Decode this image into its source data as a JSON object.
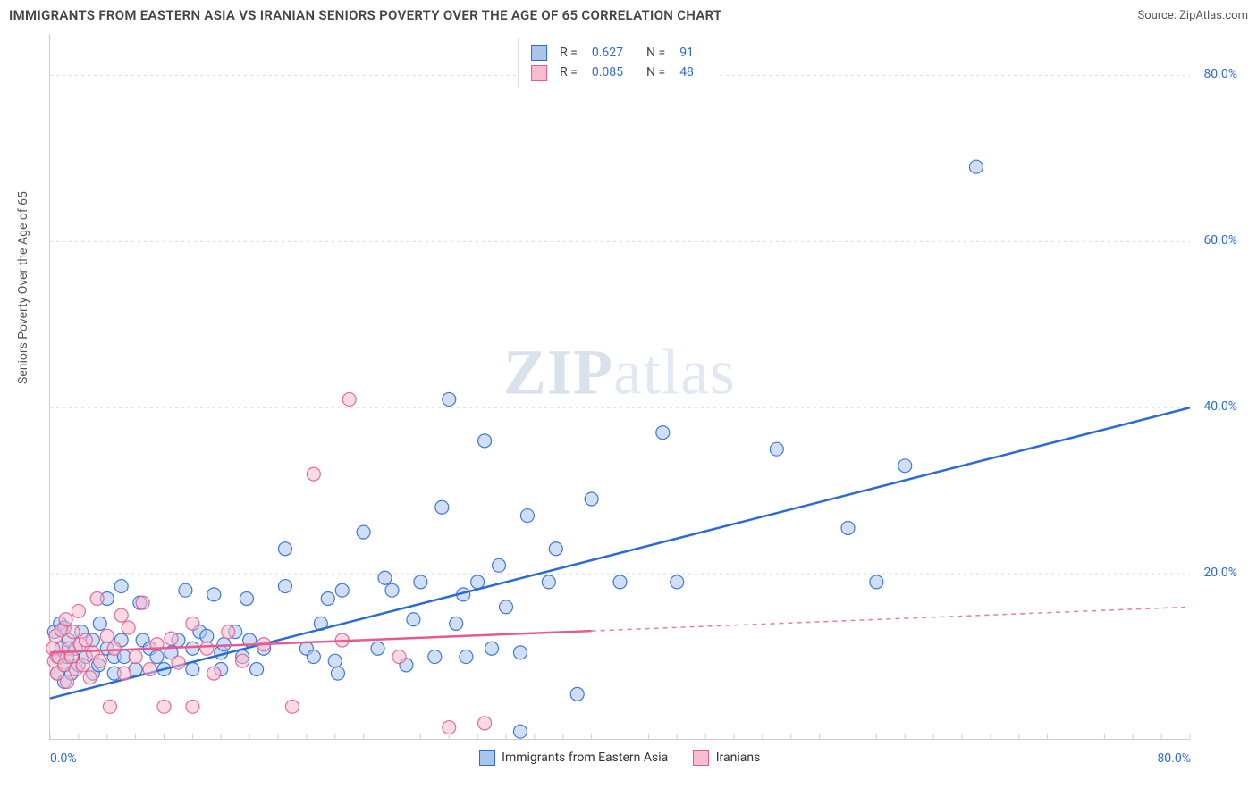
{
  "title": "IMMIGRANTS FROM EASTERN ASIA VS IRANIAN SENIORS POVERTY OVER THE AGE OF 65 CORRELATION CHART",
  "source": "Source: ZipAtlas.com",
  "y_axis_label": "Seniors Poverty Over the Age of 65",
  "watermark_a": "ZIP",
  "watermark_b": "atlas",
  "chart": {
    "type": "scatter",
    "xlim": [
      0,
      80
    ],
    "ylim": [
      0,
      85
    ],
    "x_ticks": [
      {
        "v": 0,
        "label": "0.0%"
      },
      {
        "v": 80,
        "label": "80.0%"
      }
    ],
    "y_ticks": [
      {
        "v": 20,
        "label": "20.0%"
      },
      {
        "v": 40,
        "label": "40.0%"
      },
      {
        "v": 60,
        "label": "60.0%"
      },
      {
        "v": 80,
        "label": "80.0%"
      }
    ],
    "x_minor_grid_step": 2,
    "background_color": "#ffffff",
    "grid_color": "#d9d9d9",
    "minor_tick_color": "#cccccc",
    "marker_radius": 7.5,
    "marker_opacity": 0.55,
    "trend_line_width": 2.5,
    "trend_dash": "5,5"
  },
  "legend_top": {
    "rows": [
      {
        "swatch_fill": "#a9c5ec",
        "swatch_stroke": "#2b6cd4",
        "r": "0.627",
        "n": "91"
      },
      {
        "swatch_fill": "#f7bccd",
        "swatch_stroke": "#e75a8d",
        "r": "0.085",
        "n": "48"
      }
    ],
    "r_label": "R  =",
    "n_label": "N  ="
  },
  "legend_bottom": [
    {
      "swatch_fill": "#a9c5ec",
      "swatch_stroke": "#2b6cd4",
      "label": "Immigrants from Eastern Asia"
    },
    {
      "swatch_fill": "#f7bccd",
      "swatch_stroke": "#e75a8d",
      "label": "Iranians"
    }
  ],
  "series": [
    {
      "name": "eastern_asia",
      "color_fill": "#a9c5ec",
      "color_stroke": "#2b6cd4",
      "trend": {
        "x1": 0,
        "y1": 5,
        "x2": 80,
        "y2": 40,
        "solid_until_x": 80
      },
      "points": [
        [
          0.3,
          13
        ],
        [
          0.5,
          10
        ],
        [
          0.5,
          8
        ],
        [
          0.7,
          14
        ],
        [
          0.8,
          11
        ],
        [
          1,
          7
        ],
        [
          1,
          9
        ],
        [
          1,
          13.5
        ],
        [
          1.2,
          10
        ],
        [
          1.3,
          12
        ],
        [
          1.5,
          8
        ],
        [
          1.8,
          11
        ],
        [
          2,
          9
        ],
        [
          2.2,
          13
        ],
        [
          2.5,
          10
        ],
        [
          3,
          8
        ],
        [
          3,
          12
        ],
        [
          3.4,
          9
        ],
        [
          3.5,
          14
        ],
        [
          4,
          11
        ],
        [
          4,
          17
        ],
        [
          4.5,
          8
        ],
        [
          4.5,
          10
        ],
        [
          5,
          12
        ],
        [
          5,
          18.5
        ],
        [
          5.2,
          10
        ],
        [
          6,
          8.5
        ],
        [
          6.3,
          16.5
        ],
        [
          6.5,
          12
        ],
        [
          7,
          11
        ],
        [
          7.5,
          10
        ],
        [
          8,
          8.5
        ],
        [
          8.5,
          10.5
        ],
        [
          9,
          12
        ],
        [
          9.5,
          18
        ],
        [
          10,
          11
        ],
        [
          10,
          8.5
        ],
        [
          10.5,
          13
        ],
        [
          11,
          12.5
        ],
        [
          11.5,
          17.5
        ],
        [
          12,
          10.5
        ],
        [
          12,
          8.5
        ],
        [
          12.2,
          11.5
        ],
        [
          13,
          13
        ],
        [
          13.5,
          10
        ],
        [
          13.8,
          17
        ],
        [
          14,
          12
        ],
        [
          14.5,
          8.5
        ],
        [
          15,
          11
        ],
        [
          16.5,
          18.5
        ],
        [
          16.5,
          23
        ],
        [
          18,
          11
        ],
        [
          18.5,
          10
        ],
        [
          19,
          14
        ],
        [
          19.5,
          17
        ],
        [
          20,
          9.5
        ],
        [
          20.2,
          8
        ],
        [
          20.5,
          18
        ],
        [
          22,
          25
        ],
        [
          23,
          11
        ],
        [
          23.5,
          19.5
        ],
        [
          24,
          18
        ],
        [
          25,
          9
        ],
        [
          25.5,
          14.5
        ],
        [
          26,
          19
        ],
        [
          27,
          10
        ],
        [
          27.5,
          28
        ],
        [
          28,
          41
        ],
        [
          28.5,
          14
        ],
        [
          29,
          17.5
        ],
        [
          29.2,
          10
        ],
        [
          30,
          19
        ],
        [
          30.5,
          36
        ],
        [
          31,
          11
        ],
        [
          31.5,
          21
        ],
        [
          32,
          16
        ],
        [
          33,
          10.5
        ],
        [
          33,
          1
        ],
        [
          33.5,
          27
        ],
        [
          35,
          19
        ],
        [
          35.5,
          23
        ],
        [
          37,
          5.5
        ],
        [
          38,
          29
        ],
        [
          40,
          19
        ],
        [
          43,
          37
        ],
        [
          44,
          19
        ],
        [
          51,
          35
        ],
        [
          56,
          25.5
        ],
        [
          58,
          19
        ],
        [
          60,
          33
        ],
        [
          65,
          69
        ]
      ]
    },
    {
      "name": "iranians",
      "color_fill": "#f7bccd",
      "color_stroke": "#e75a8d",
      "trend": {
        "x1": 0,
        "y1": 10.5,
        "x2": 80,
        "y2": 16,
        "solid_until_x": 38
      },
      "points": [
        [
          0.2,
          11
        ],
        [
          0.3,
          9.5
        ],
        [
          0.4,
          12.5
        ],
        [
          0.5,
          8
        ],
        [
          0.6,
          10
        ],
        [
          0.8,
          13.2
        ],
        [
          1,
          9
        ],
        [
          1.1,
          14.5
        ],
        [
          1.2,
          7
        ],
        [
          1.3,
          11
        ],
        [
          1.5,
          10
        ],
        [
          1.6,
          13
        ],
        [
          1.8,
          8.5
        ],
        [
          2,
          15.5
        ],
        [
          2.1,
          11.5
        ],
        [
          2.3,
          9
        ],
        [
          2.5,
          12
        ],
        [
          2.8,
          7.5
        ],
        [
          3,
          10.5
        ],
        [
          3.3,
          17
        ],
        [
          3.5,
          9.5
        ],
        [
          4,
          12.5
        ],
        [
          4.2,
          4
        ],
        [
          4.5,
          11
        ],
        [
          5,
          15
        ],
        [
          5.2,
          8
        ],
        [
          5.5,
          13.5
        ],
        [
          6,
          10
        ],
        [
          6.5,
          16.5
        ],
        [
          7,
          8.5
        ],
        [
          7.5,
          11.5
        ],
        [
          8,
          4
        ],
        [
          8.5,
          12.2
        ],
        [
          9,
          9.3
        ],
        [
          10,
          14
        ],
        [
          10,
          4
        ],
        [
          11,
          11
        ],
        [
          11.5,
          8
        ],
        [
          12.5,
          13
        ],
        [
          13.5,
          9.5
        ],
        [
          15,
          11.5
        ],
        [
          17,
          4
        ],
        [
          18.5,
          32
        ],
        [
          20.5,
          12
        ],
        [
          21,
          41
        ],
        [
          24.5,
          10
        ],
        [
          28,
          1.5
        ],
        [
          30.5,
          2
        ]
      ]
    }
  ]
}
